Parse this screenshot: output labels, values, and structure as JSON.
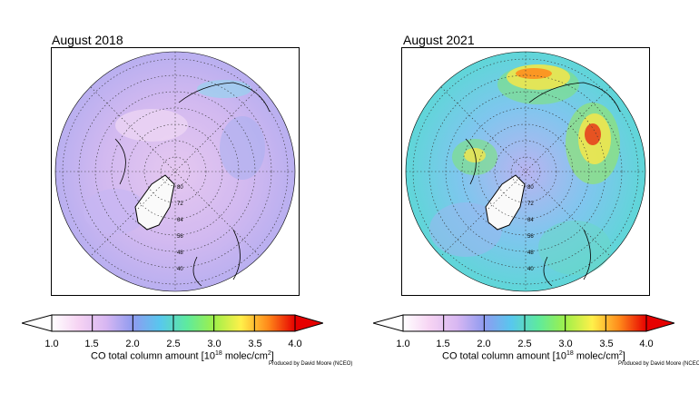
{
  "panels": [
    {
      "title": "August 2018"
    },
    {
      "title": "August 2021"
    }
  ],
  "colorbar": {
    "ticks": [
      "1.0",
      "1.5",
      "2.0",
      "2.5",
      "3.0",
      "3.5",
      "4.0"
    ],
    "label_prefix": "CO total column amount [10",
    "label_exp": "18",
    "label_mid": " molec/cm",
    "label_exp2": "2",
    "label_suffix": "]",
    "colors": [
      "#ffffff",
      "#f6d3f3",
      "#d8b7f2",
      "#8f9bf0",
      "#58c7ee",
      "#5eea9e",
      "#9ff04a",
      "#fff04a",
      "#ff8a1a",
      "#e60000"
    ]
  },
  "credit": "Produced by David Moore (NCEO)",
  "map_labels": [
    "80",
    "72",
    "64",
    "56",
    "48",
    "40",
    "80",
    "72",
    "64",
    "56",
    "48",
    "40"
  ]
}
